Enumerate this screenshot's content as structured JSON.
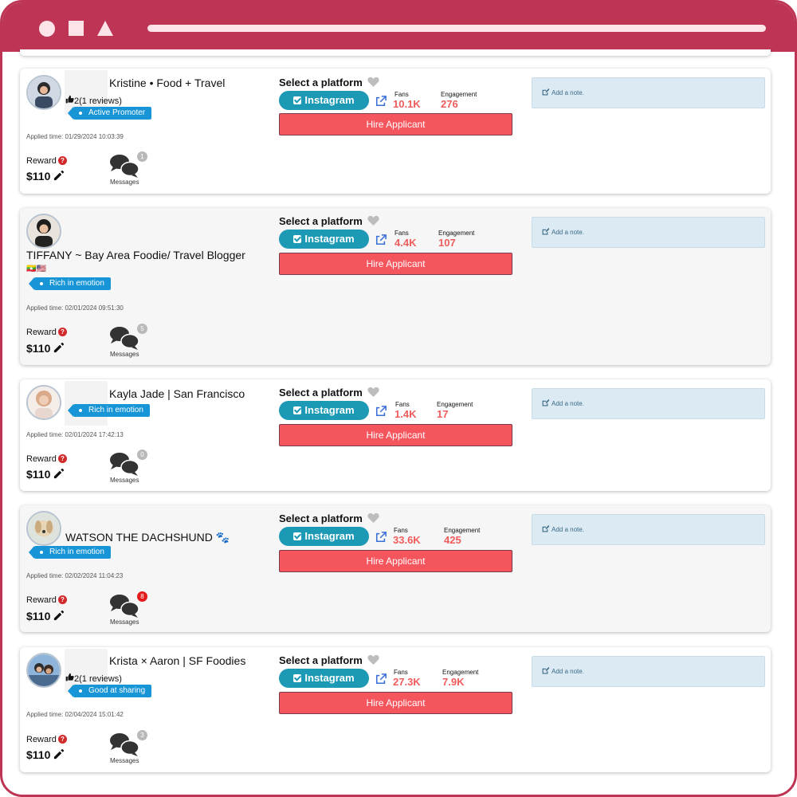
{
  "common": {
    "select_platform": "Select a platform",
    "instagram": "Instagram",
    "hire": "Hire Applicant",
    "add_note": "Add a note.",
    "fans": "Fans",
    "engagement": "Engagement",
    "reward": "Reward",
    "messages": "Messages"
  },
  "colors": {
    "titlebar": "#be3455",
    "instagram_button": "#1c99b4",
    "hire_button": "#f5565e",
    "stat_value": "#f05c5c",
    "tag": "#1795d6",
    "note_bg": "#dbeaf3"
  },
  "applicants": [
    {
      "name": "Kristine • Food + Travel",
      "reviews_count": "2",
      "reviews_text": "(1 reviews)",
      "tag": "Active Promoter",
      "applied": "Applied time: 01/29/2024 10:03:39",
      "reward": "$110",
      "messages": "1",
      "fans": "10.1K",
      "engagement": "276"
    },
    {
      "name": "TIFFANY ~ Bay Area Foodie/ Travel Blogger",
      "flags": "🇲🇲🇺🇸",
      "tag": "Rich in emotion",
      "applied": "Applied time: 02/01/2024 09:51:30",
      "reward": "$110",
      "messages": "5",
      "fans": "4.4K",
      "engagement": "107"
    },
    {
      "name": "Kayla Jade | San Francisco",
      "tag": "Rich in emotion",
      "applied": "Applied time: 02/01/2024 17:42:13",
      "reward": "$110",
      "messages": "0",
      "fans": "1.4K",
      "engagement": "17"
    },
    {
      "name": "WATSON THE DACHSHUND 🐾",
      "tag": "Rich in emotion",
      "applied": "Applied time: 02/02/2024 11:04:23",
      "reward": "$110",
      "messages": "8",
      "fans": "33.6K",
      "engagement": "425"
    },
    {
      "name": "Krista × Aaron | SF Foodies",
      "reviews_count": "2",
      "reviews_text": "(1 reviews)",
      "tag": "Good at sharing",
      "applied": "Applied time: 02/04/2024 15:01:42",
      "reward": "$110",
      "messages": "3",
      "fans": "27.3K",
      "engagement": "7.9K"
    }
  ]
}
